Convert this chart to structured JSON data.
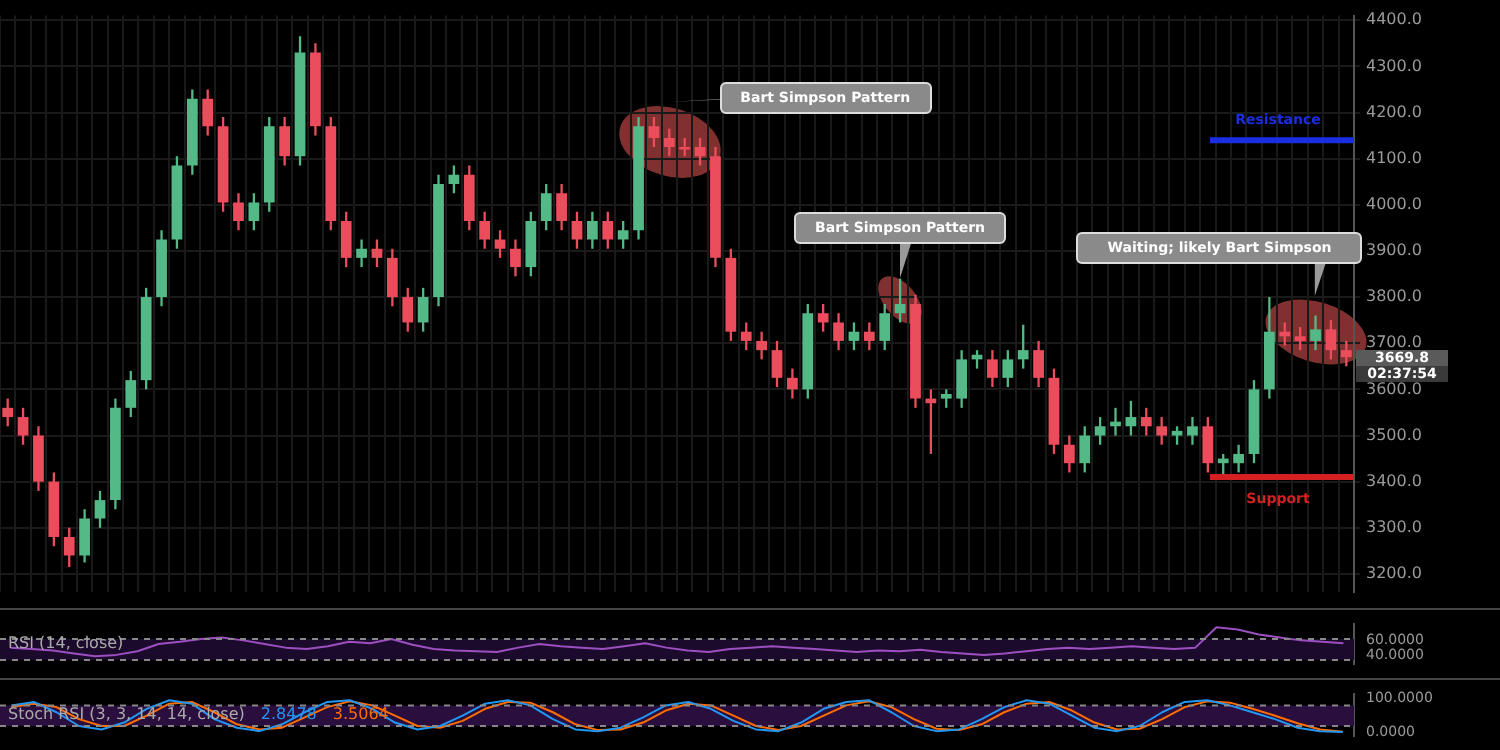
{
  "chart_data": [
    {
      "type": "candlestick",
      "categories": [
        null,
        null,
        null,
        null,
        null,
        null,
        null,
        null,
        null,
        null,
        null,
        null,
        null,
        null,
        null,
        null,
        null,
        null,
        null,
        null,
        null,
        null,
        null,
        null,
        null,
        null,
        null,
        null,
        null,
        null,
        null,
        null,
        null,
        null,
        null,
        null,
        null,
        null,
        null,
        null,
        null,
        null,
        null,
        null,
        null,
        null,
        null,
        null,
        null,
        null,
        null,
        null,
        null,
        null,
        null,
        null,
        null,
        null,
        null,
        null,
        null,
        null,
        null,
        null,
        null,
        null,
        null,
        null,
        null,
        null,
        null,
        null,
        null,
        null,
        null,
        null,
        null,
        null,
        null,
        null,
        null,
        null,
        null,
        null,
        null,
        null,
        null,
        null
      ],
      "ohlc": [
        [
          3560,
          3580,
          3520,
          3540
        ],
        [
          3540,
          3560,
          3480,
          3500
        ],
        [
          3500,
          3520,
          3380,
          3400
        ],
        [
          3400,
          3420,
          3260,
          3280
        ],
        [
          3280,
          3300,
          3215,
          3240
        ],
        [
          3240,
          3340,
          3225,
          3320
        ],
        [
          3320,
          3380,
          3300,
          3360
        ],
        [
          3360,
          3580,
          3340,
          3560
        ],
        [
          3560,
          3640,
          3540,
          3620
        ],
        [
          3620,
          3820,
          3600,
          3800
        ],
        [
          3800,
          3945,
          3780,
          3925
        ],
        [
          3925,
          4105,
          3905,
          4085
        ],
        [
          4085,
          4250,
          4065,
          4230
        ],
        [
          4230,
          4250,
          4150,
          4170
        ],
        [
          4170,
          4190,
          3985,
          4005
        ],
        [
          4005,
          4025,
          3945,
          3965
        ],
        [
          3965,
          4025,
          3945,
          4005
        ],
        [
          4005,
          4190,
          3985,
          4170
        ],
        [
          4170,
          4190,
          4085,
          4105
        ],
        [
          4105,
          4365,
          4085,
          4330
        ],
        [
          4330,
          4350,
          4150,
          4170
        ],
        [
          4170,
          4190,
          3945,
          3965
        ],
        [
          3965,
          3985,
          3865,
          3885
        ],
        [
          3885,
          3925,
          3865,
          3905
        ],
        [
          3905,
          3925,
          3865,
          3885
        ],
        [
          3885,
          3905,
          3780,
          3800
        ],
        [
          3800,
          3820,
          3725,
          3745
        ],
        [
          3745,
          3820,
          3725,
          3800
        ],
        [
          3800,
          4065,
          3780,
          4045
        ],
        [
          4045,
          4085,
          4025,
          4065
        ],
        [
          4065,
          4085,
          3945,
          3965
        ],
        [
          3965,
          3985,
          3905,
          3925
        ],
        [
          3925,
          3945,
          3885,
          3905
        ],
        [
          3905,
          3925,
          3845,
          3865
        ],
        [
          3865,
          3985,
          3845,
          3965
        ],
        [
          3965,
          4045,
          3945,
          4025
        ],
        [
          4025,
          4045,
          3945,
          3965
        ],
        [
          3965,
          3985,
          3905,
          3925
        ],
        [
          3925,
          3985,
          3905,
          3965
        ],
        [
          3965,
          3985,
          3905,
          3925
        ],
        [
          3925,
          3965,
          3905,
          3945
        ],
        [
          3945,
          4190,
          3925,
          4170
        ],
        [
          4170,
          4190,
          4125,
          4145
        ],
        [
          4145,
          4165,
          4105,
          4125
        ],
        [
          4125,
          4145,
          4105,
          4120
        ],
        [
          4125,
          4145,
          4085,
          4105
        ],
        [
          4105,
          4125,
          3865,
          3885
        ],
        [
          3885,
          3905,
          3705,
          3725
        ],
        [
          3725,
          3745,
          3685,
          3705
        ],
        [
          3705,
          3725,
          3665,
          3685
        ],
        [
          3685,
          3705,
          3605,
          3625
        ],
        [
          3625,
          3645,
          3580,
          3600
        ],
        [
          3600,
          3785,
          3580,
          3765
        ],
        [
          3765,
          3785,
          3725,
          3745
        ],
        [
          3745,
          3765,
          3685,
          3705
        ],
        [
          3705,
          3745,
          3685,
          3725
        ],
        [
          3725,
          3745,
          3685,
          3705
        ],
        [
          3705,
          3785,
          3685,
          3765
        ],
        [
          3765,
          3840,
          3745,
          3785
        ],
        [
          3785,
          3805,
          3560,
          3580
        ],
        [
          3580,
          3600,
          3460,
          3570
        ],
        [
          3580,
          3600,
          3560,
          3590
        ],
        [
          3580,
          3685,
          3560,
          3665
        ],
        [
          3665,
          3685,
          3645,
          3675
        ],
        [
          3665,
          3685,
          3605,
          3625
        ],
        [
          3625,
          3685,
          3605,
          3665
        ],
        [
          3665,
          3740,
          3645,
          3685
        ],
        [
          3685,
          3705,
          3605,
          3625
        ],
        [
          3625,
          3645,
          3460,
          3480
        ],
        [
          3480,
          3500,
          3420,
          3440
        ],
        [
          3440,
          3520,
          3420,
          3500
        ],
        [
          3500,
          3540,
          3480,
          3520
        ],
        [
          3520,
          3560,
          3500,
          3530
        ],
        [
          3520,
          3575,
          3500,
          3540
        ],
        [
          3540,
          3560,
          3500,
          3520
        ],
        [
          3520,
          3540,
          3480,
          3500
        ],
        [
          3500,
          3520,
          3480,
          3510
        ],
        [
          3500,
          3540,
          3480,
          3520
        ],
        [
          3520,
          3540,
          3420,
          3440
        ],
        [
          3440,
          3460,
          3410,
          3450
        ],
        [
          3440,
          3480,
          3420,
          3460
        ],
        [
          3460,
          3620,
          3440,
          3600
        ],
        [
          3600,
          3800,
          3580,
          3725
        ],
        [
          3725,
          3745,
          3695,
          3715
        ],
        [
          3715,
          3735,
          3685,
          3705
        ],
        [
          3705,
          3760,
          3685,
          3730
        ],
        [
          3730,
          3750,
          3665,
          3685
        ],
        [
          3685,
          3705,
          3650,
          3669.8
        ]
      ],
      "ylim": [
        3160,
        4410
      ],
      "yticks": [
        {
          "value": 3200,
          "label": "3200.0"
        },
        {
          "value": 3300,
          "label": "3300.0"
        },
        {
          "value": 3400,
          "label": "3400.0"
        },
        {
          "value": 3500,
          "label": "3500.0"
        },
        {
          "value": 3600,
          "label": "3600.0"
        },
        {
          "value": 3700,
          "label": "3700.0"
        },
        {
          "value": 3800,
          "label": "3800.0"
        },
        {
          "value": 3900,
          "label": "3900.0"
        },
        {
          "value": 4000,
          "label": "4000.0"
        },
        {
          "value": 4100,
          "label": "4100.0"
        },
        {
          "value": 4200,
          "label": "4200.0"
        },
        {
          "value": 4300,
          "label": "4300.0"
        },
        {
          "value": 4400,
          "label": "4400.0"
        }
      ],
      "grid": true,
      "ref_lines": [
        {
          "axis": "y",
          "value": 4140,
          "label": "Resistance",
          "color": "#1a2ee0"
        },
        {
          "axis": "y",
          "value": 3410,
          "label": "Support",
          "color": "#d42020"
        }
      ],
      "annotations": [
        "Bart Simpson Pattern",
        "Bart Simpson Pattern",
        "Waiting; likely Bart Simpson",
        "3669.8",
        "02:37:54"
      ]
    },
    {
      "type": "line",
      "title": "RSI (14, close)",
      "categories": [
        null,
        null,
        null,
        null,
        null,
        null,
        null,
        null,
        null,
        null,
        null,
        null,
        null,
        null,
        null,
        null,
        null,
        null,
        null,
        null,
        null,
        null,
        null,
        null,
        null,
        null,
        null,
        null,
        null,
        null,
        null,
        null,
        null,
        null,
        null,
        null,
        null,
        null,
        null,
        null,
        null,
        null,
        null,
        null,
        null,
        null,
        null,
        null,
        null,
        null,
        null,
        null,
        null,
        null,
        null,
        null,
        null,
        null,
        null,
        null,
        null,
        null,
        null,
        null
      ],
      "series": [
        {
          "color": "#9b4fc0",
          "values": [
            50,
            48,
            46,
            42,
            38,
            40,
            45,
            55,
            58,
            62,
            64,
            60,
            55,
            50,
            48,
            52,
            58,
            56,
            62,
            54,
            48,
            46,
            45,
            44,
            50,
            55,
            52,
            50,
            48,
            52,
            56,
            50,
            46,
            44,
            48,
            50,
            52,
            50,
            48,
            46,
            44,
            46,
            45,
            47,
            44,
            42,
            40,
            42,
            45,
            48,
            50,
            48,
            50,
            52,
            50,
            48,
            50,
            78,
            75,
            68,
            64,
            60,
            58,
            56
          ]
        }
      ],
      "ylim": [
        28,
        82
      ],
      "yticks": [
        {
          "value": 40,
          "label": "40.0000"
        },
        {
          "value": 60,
          "label": "60.0000"
        }
      ],
      "bands": [
        {
          "axis": "y",
          "from": 33,
          "to": 62,
          "color": "#1c0a2c"
        }
      ],
      "ref_lines": [
        {
          "axis": "y",
          "value": 33,
          "color": "#888888",
          "line_style": "dashed"
        },
        {
          "axis": "y",
          "value": 62,
          "color": "#888888",
          "line_style": "dashed"
        }
      ]
    },
    {
      "type": "line",
      "title": "Stoch RSI (3, 3, 14, 14, close)",
      "categories": [
        null,
        null,
        null,
        null,
        null,
        null,
        null,
        null,
        null,
        null,
        null,
        null,
        null,
        null,
        null,
        null,
        null,
        null,
        null,
        null,
        null,
        null,
        null,
        null,
        null,
        null,
        null,
        null,
        null,
        null,
        null,
        null,
        null,
        null,
        null,
        null,
        null,
        null,
        null,
        null,
        null,
        null,
        null,
        null,
        null,
        null,
        null,
        null,
        null,
        null,
        null,
        null,
        null,
        null,
        null,
        null,
        null,
        null,
        null,
        null
      ],
      "series": [
        {
          "color": "#2196f3",
          "values": [
            80,
            90,
            60,
            20,
            10,
            30,
            70,
            95,
            85,
            40,
            15,
            5,
            25,
            60,
            90,
            95,
            70,
            30,
            10,
            20,
            50,
            85,
            95,
            80,
            40,
            10,
            5,
            15,
            45,
            80,
            90,
            70,
            35,
            10,
            5,
            30,
            70,
            90,
            95,
            60,
            20,
            5,
            10,
            40,
            75,
            95,
            85,
            50,
            15,
            5,
            20,
            60,
            90,
            95,
            80,
            60,
            40,
            15,
            5,
            2.8478
          ]
        },
        {
          "color": "#ff6d00",
          "values": [
            75,
            85,
            75,
            40,
            20,
            20,
            50,
            85,
            90,
            60,
            25,
            10,
            15,
            45,
            75,
            92,
            80,
            50,
            20,
            15,
            35,
            70,
            90,
            88,
            60,
            25,
            8,
            10,
            30,
            65,
            85,
            80,
            50,
            20,
            8,
            20,
            50,
            80,
            92,
            75,
            40,
            12,
            8,
            25,
            60,
            85,
            90,
            65,
            30,
            10,
            12,
            40,
            75,
            92,
            88,
            70,
            50,
            28,
            10,
            3.5064
          ]
        }
      ],
      "ylim": [
        -8,
        112
      ],
      "yticks": [
        {
          "value": 0,
          "label": "0.0000"
        },
        {
          "value": 100,
          "label": "100.0000"
        }
      ],
      "bands": [
        {
          "axis": "y",
          "from": 20,
          "to": 80,
          "color": "#2a0e3e"
        }
      ],
      "ref_lines": [
        {
          "axis": "y",
          "value": 20,
          "color": "#888888",
          "line_style": "dashed"
        },
        {
          "axis": "y",
          "value": 80,
          "color": "#888888",
          "line_style": "dashed"
        }
      ],
      "annotations": [
        "2.8478",
        "3.5064"
      ]
    }
  ]
}
